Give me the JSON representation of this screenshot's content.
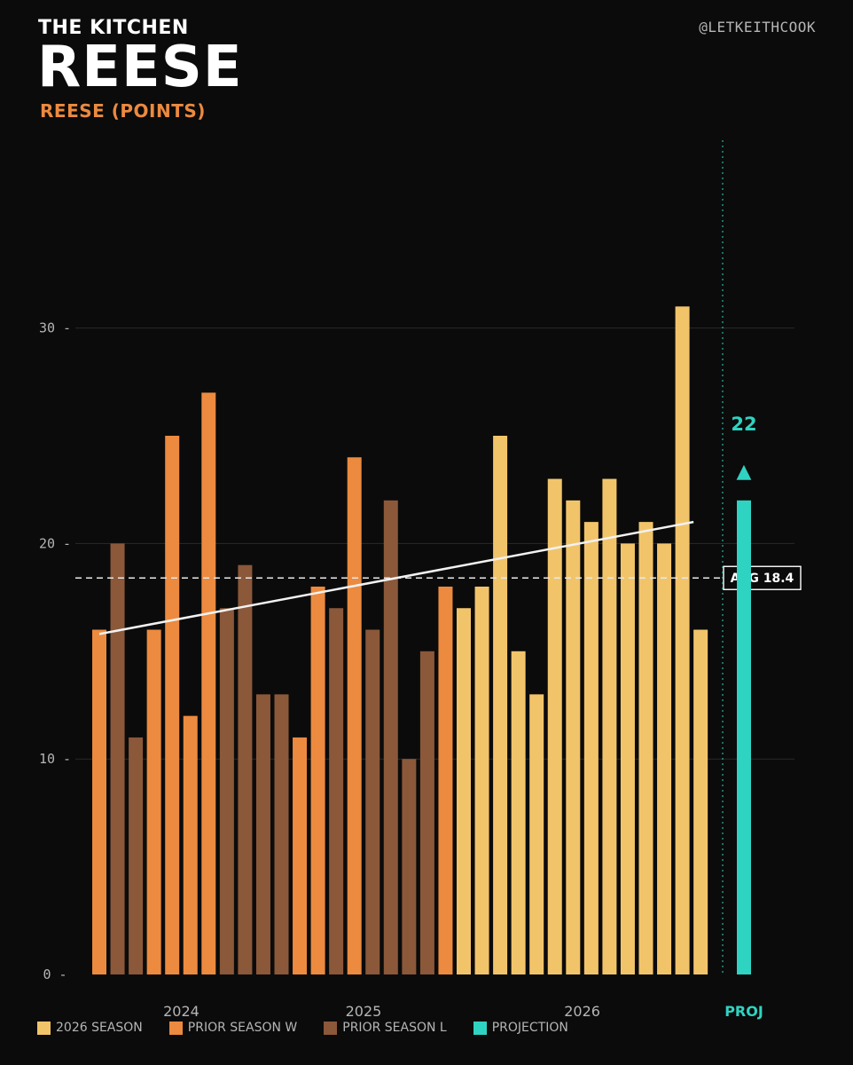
{
  "header": {
    "brand": "THE KITCHEN",
    "title": "REESE",
    "subtitle": "REESE (POINTS)",
    "handle": "@LETKEITHCOOK"
  },
  "colors": {
    "background": "#0b0b0b",
    "season_2026": "#f2c46a",
    "prior_w": "#ec8a3f",
    "prior_l": "#8b583a",
    "projection": "#2fd3c1",
    "trend": "#f2f2f2",
    "grid": "#2a2a2a",
    "tick_text": "#b5b5b5"
  },
  "legend": [
    {
      "label": "2026 SEASON",
      "color": "#f2c46a"
    },
    {
      "label": "PRIOR SEASON W",
      "color": "#ec8a3f"
    },
    {
      "label": "PRIOR SEASON L",
      "color": "#8b583a"
    },
    {
      "label": "PROJECTION",
      "color": "#2fd3c1"
    }
  ],
  "chart_data": {
    "type": "bar",
    "ylim": [
      0,
      38
    ],
    "yticks": [
      0,
      10,
      20,
      30
    ],
    "ytick_labels": [
      "0 -",
      "10 -",
      "20 -",
      "30 -"
    ],
    "grid": true,
    "series_categories": [
      "prior_w",
      "prior_l",
      "2026"
    ],
    "bars": [
      {
        "value": 16,
        "cat": "prior_w"
      },
      {
        "value": 20,
        "cat": "prior_l"
      },
      {
        "value": 11,
        "cat": "prior_l"
      },
      {
        "value": 16,
        "cat": "prior_w"
      },
      {
        "value": 25,
        "cat": "prior_w"
      },
      {
        "value": 12,
        "cat": "prior_w"
      },
      {
        "value": 27,
        "cat": "prior_w"
      },
      {
        "value": 17,
        "cat": "prior_l"
      },
      {
        "value": 19,
        "cat": "prior_l"
      },
      {
        "value": 13,
        "cat": "prior_l"
      },
      {
        "value": 13,
        "cat": "prior_l"
      },
      {
        "value": 11,
        "cat": "prior_w"
      },
      {
        "value": 18,
        "cat": "prior_w"
      },
      {
        "value": 17,
        "cat": "prior_l"
      },
      {
        "value": 24,
        "cat": "prior_w"
      },
      {
        "value": 16,
        "cat": "prior_l"
      },
      {
        "value": 22,
        "cat": "prior_l"
      },
      {
        "value": 10,
        "cat": "prior_l"
      },
      {
        "value": 15,
        "cat": "prior_l"
      },
      {
        "value": 18,
        "cat": "prior_w"
      },
      {
        "value": 17,
        "cat": "2026"
      },
      {
        "value": 18,
        "cat": "2026"
      },
      {
        "value": 25,
        "cat": "2026"
      },
      {
        "value": 15,
        "cat": "2026"
      },
      {
        "value": 13,
        "cat": "2026"
      },
      {
        "value": 23,
        "cat": "2026"
      },
      {
        "value": 22,
        "cat": "2026"
      },
      {
        "value": 21,
        "cat": "2026"
      },
      {
        "value": 23,
        "cat": "2026"
      },
      {
        "value": 20,
        "cat": "2026"
      },
      {
        "value": 21,
        "cat": "2026"
      },
      {
        "value": 20,
        "cat": "2026"
      },
      {
        "value": 31,
        "cat": "2026"
      },
      {
        "value": 16,
        "cat": "2026"
      }
    ],
    "season_labels": [
      {
        "label": "2024",
        "bar_index": 4.5
      },
      {
        "label": "2025",
        "bar_index": 14.5
      },
      {
        "label": "2026",
        "bar_index": 26.5
      }
    ],
    "average": {
      "value": 18.4,
      "label": "AVG 18.4"
    },
    "trend": {
      "start_value": 15.8,
      "end_value": 21.0
    },
    "projection": {
      "value": 22,
      "value_label": "22",
      "axis_label": "PROJ",
      "arrow": "▲"
    }
  }
}
